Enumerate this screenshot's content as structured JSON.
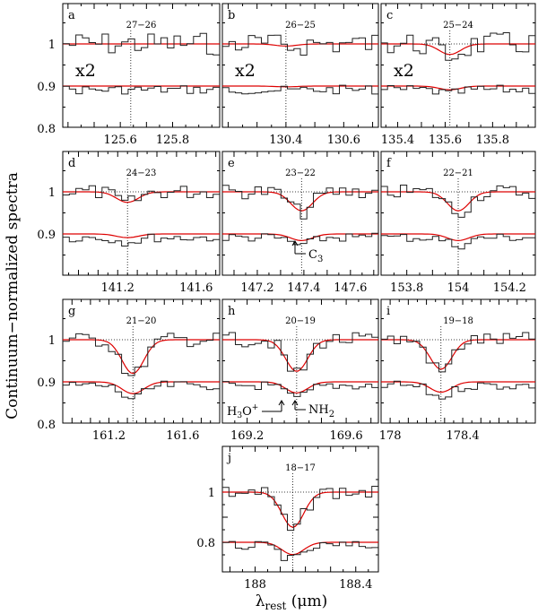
{
  "figure": {
    "y_axis_label": "Continuum−normalized spectra",
    "x_axis_label": "λrest (μm)",
    "x_axis_label_main": "λ",
    "x_axis_label_sub": "rest",
    "x_axis_label_unit": " (μm)"
  },
  "chart_data": [
    {
      "type": "line",
      "panel": "a",
      "transition": "27–26",
      "scale_note": "x2",
      "xticks": [
        "125.6",
        "125.8"
      ],
      "xticks_val": [
        125.6,
        125.8
      ],
      "xlim": [
        125.38,
        125.98
      ],
      "yticks": [
        "1",
        "0.9",
        "0.8"
      ],
      "line_center": 125.64,
      "line_depth": 0.0,
      "upper_offset": 0.0,
      "lower_offset": 0.0
    },
    {
      "type": "line",
      "panel": "b",
      "transition": "26–25",
      "scale_note": "x2",
      "xticks": [
        "130.4",
        "130.6"
      ],
      "xticks_val": [
        130.4,
        130.6
      ],
      "xlim": [
        130.18,
        130.72
      ],
      "line_center": 130.4,
      "line_depth": 0.005
    },
    {
      "type": "line",
      "panel": "c",
      "transition": "25–24",
      "scale_note": "x2",
      "xticks": [
        "135.4",
        "135.6",
        "135.8"
      ],
      "xticks_val": [
        135.4,
        135.6,
        135.8
      ],
      "xlim": [
        135.33,
        135.98
      ],
      "line_center": 135.62,
      "line_depth": 0.025
    },
    {
      "type": "line",
      "panel": "d",
      "transition": "24–23",
      "xticks": [
        "141.2",
        "141.6"
      ],
      "xticks_val": [
        141.2,
        141.6
      ],
      "xlim": [
        140.92,
        141.72
      ],
      "line_center": 141.25,
      "line_depth": 0.025,
      "yticks": [
        "1",
        "0.9"
      ]
    },
    {
      "type": "line",
      "panel": "e",
      "transition": "23–22",
      "xticks": [
        "147.2",
        "147.4",
        "147.6"
      ],
      "xticks_val": [
        147.2,
        147.4,
        147.6
      ],
      "xlim": [
        147.05,
        147.72
      ],
      "line_center": 147.39,
      "line_depth": 0.045,
      "annotation": "C3"
    },
    {
      "type": "line",
      "panel": "f",
      "transition": "22–21",
      "xticks": [
        "153.8",
        "154",
        "154.2"
      ],
      "xticks_val": [
        153.8,
        154.0,
        154.2
      ],
      "xlim": [
        153.7,
        154.3
      ],
      "line_center": 154.0,
      "line_depth": 0.045
    },
    {
      "type": "line",
      "panel": "g",
      "transition": "21–20",
      "xticks": [
        "161.2",
        "161.6"
      ],
      "xticks_val": [
        161.2,
        161.6
      ],
      "xlim": [
        160.95,
        161.8
      ],
      "line_center": 161.33,
      "line_depth": 0.08,
      "yticks": [
        "1",
        "0.9",
        "0.8"
      ]
    },
    {
      "type": "line",
      "panel": "h",
      "transition": "20–19",
      "xticks": [
        "169.2",
        "169.6"
      ],
      "xticks_val": [
        169.2,
        169.6
      ],
      "xlim": [
        169.1,
        169.73
      ],
      "line_center": 169.4,
      "line_depth": 0.075,
      "annotation_left": "H3O+",
      "annotation_right": "NH2"
    },
    {
      "type": "line",
      "panel": "i",
      "transition": "19–18",
      "xticks": [
        "178",
        "178.4"
      ],
      "xticks_val": [
        178.0,
        178.4
      ],
      "xlim": [
        177.95,
        178.8
      ],
      "line_center": 178.28,
      "line_depth": 0.07
    },
    {
      "type": "line",
      "panel": "j",
      "transition": "18–17",
      "xticks": [
        "188",
        "188.4"
      ],
      "xticks_val": [
        188.0,
        188.4
      ],
      "xlim": [
        187.87,
        188.49
      ],
      "line_center": 188.15,
      "line_depth": 0.14,
      "yticks": [
        "1",
        "0.8"
      ]
    }
  ],
  "labels": {
    "a": "a",
    "b": "b",
    "c": "c",
    "d": "d",
    "e": "e",
    "f": "f",
    "g": "g",
    "h": "h",
    "i": "i",
    "j": "j",
    "t_a": "27−26",
    "t_b": "26−25",
    "t_c": "25−24",
    "t_d": "24−23",
    "t_e": "23−22",
    "t_f": "22−21",
    "t_g": "21−20",
    "t_h": "20−19",
    "t_i": "19−18",
    "t_j": "18−17",
    "x2": "x2",
    "yt_1": "1",
    "yt_09": "0.9",
    "yt_08": "0.8",
    "c3": "C",
    "c3_sub": "3",
    "h3o": "H",
    "h3o_sub": "3",
    "h3o_rest": "O",
    "h3o_sup": "+",
    "nh2": "NH",
    "nh2_sub": "2"
  }
}
